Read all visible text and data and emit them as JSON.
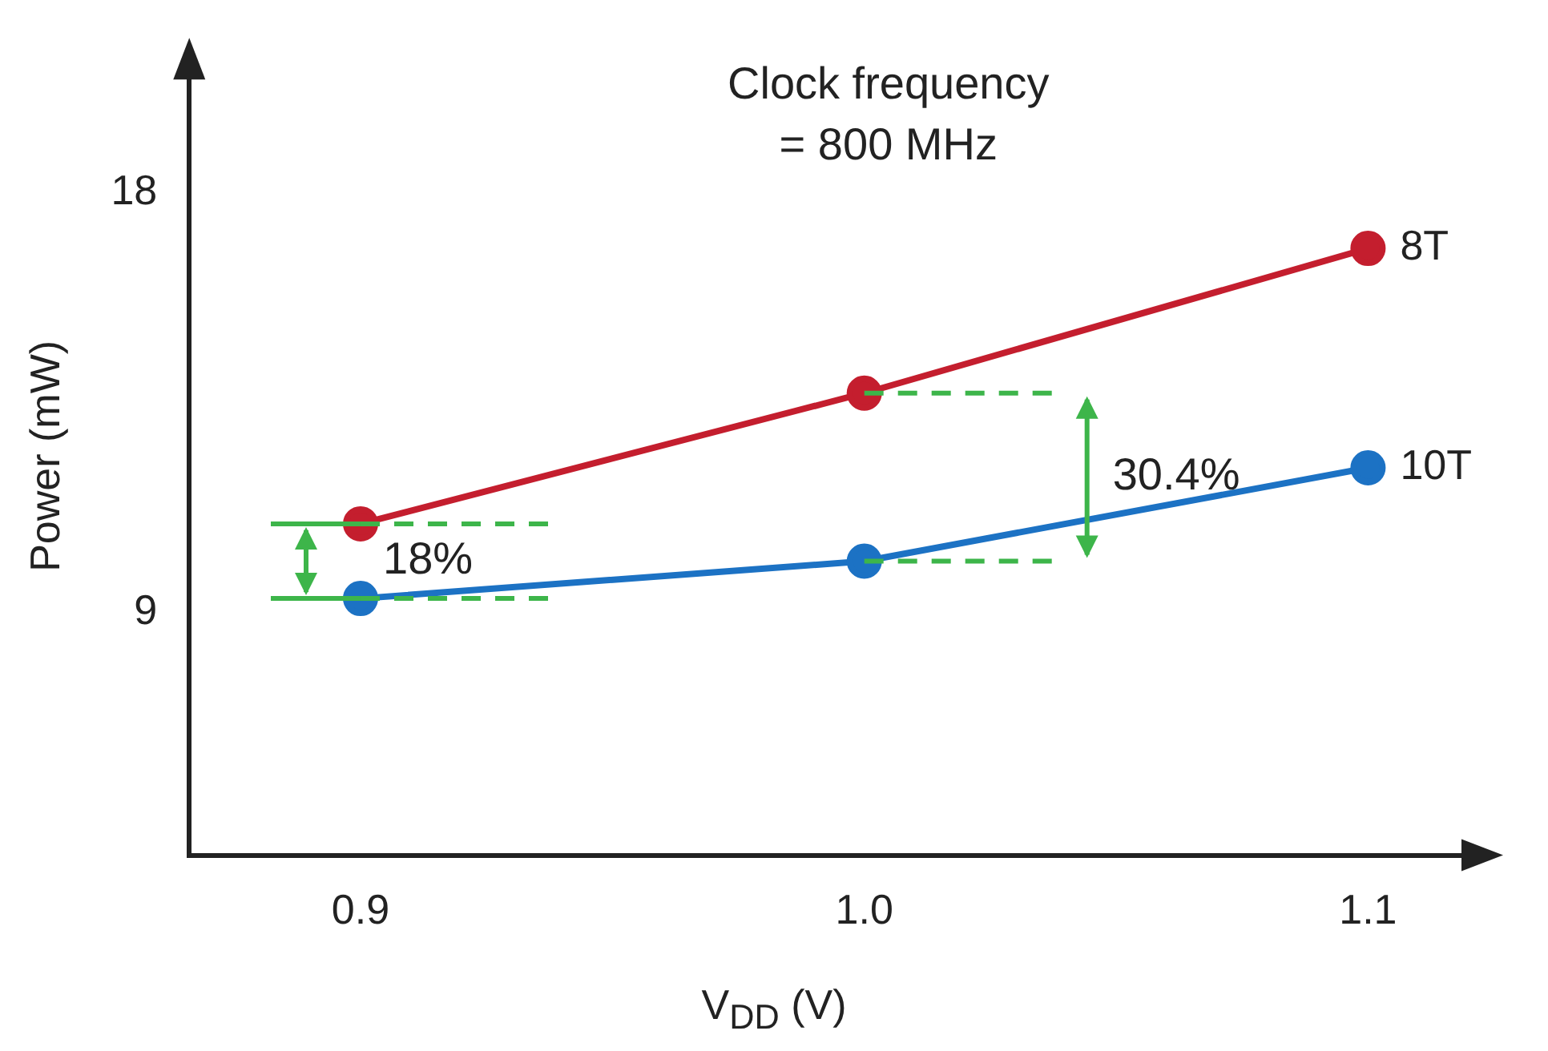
{
  "chart_data": {
    "type": "line",
    "xlabel": "V$_{DD}$ (V)",
    "ylabel": "Power (mW)",
    "x": [
      0.9,
      1.0,
      1.1
    ],
    "xlim": [
      0.866,
      1.123
    ],
    "xticks": [
      0.9,
      {
        "value": 1,
        "label": "1.0"
      },
      1.1
    ],
    "ylim": [
      3.8,
      20.9
    ],
    "yticks": [
      9,
      18
    ],
    "grid": false,
    "legend": false,
    "marker": "circle",
    "line_style": "solid",
    "series": [
      {
        "name": "8T",
        "color": "#c41e2e",
        "values": [
          10.9,
          13.7,
          16.8
        ]
      },
      {
        "name": "10T",
        "color": "#1c72c4",
        "values": [
          9.3,
          10.1,
          12.1
        ]
      }
    ],
    "annotations": [
      "Clock frequency\n= 800 MHz",
      "18%",
      "30.4%"
    ]
  }
}
